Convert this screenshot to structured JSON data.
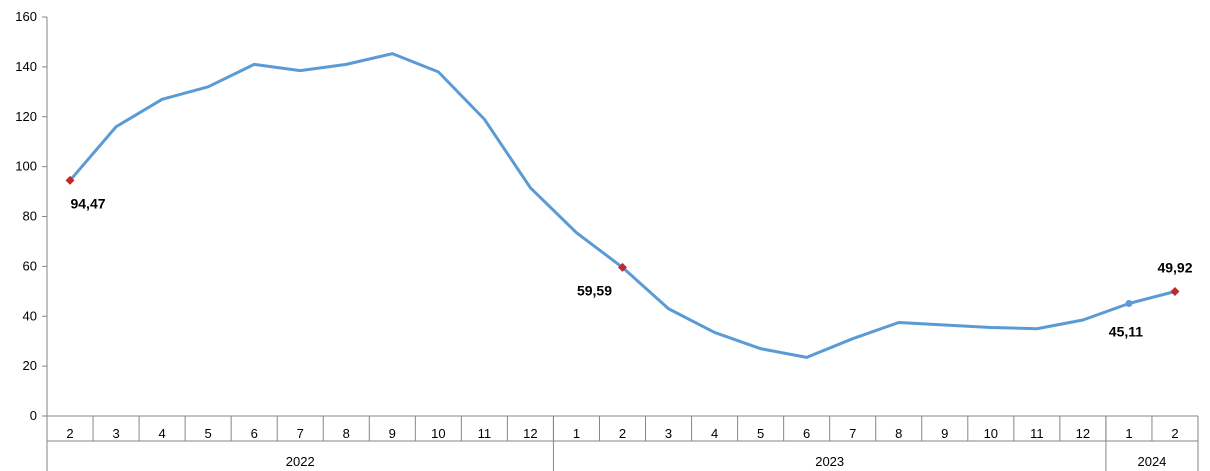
{
  "chart_data": {
    "type": "line",
    "ylim": [
      0,
      160
    ],
    "yticks": [
      0,
      20,
      40,
      60,
      80,
      100,
      120,
      140,
      160
    ],
    "grid": false,
    "categories": [
      "2",
      "3",
      "4",
      "5",
      "6",
      "7",
      "8",
      "9",
      "10",
      "11",
      "12",
      "1",
      "2",
      "3",
      "4",
      "5",
      "6",
      "7",
      "8",
      "9",
      "10",
      "11",
      "12",
      "1",
      "2"
    ],
    "groups": [
      {
        "label": "2022",
        "count": 11
      },
      {
        "label": "2023",
        "count": 12
      },
      {
        "label": "2024",
        "count": 2
      }
    ],
    "series": [
      {
        "color": "#5b9bd5",
        "values": [
          94.47,
          116.0,
          127.0,
          132.0,
          141.0,
          138.5,
          141.0,
          145.3,
          138.0,
          119.0,
          91.5,
          73.5,
          59.59,
          43.0,
          33.5,
          27.0,
          23.5,
          31.0,
          37.5,
          36.5,
          35.5,
          35.0,
          38.5,
          45.11,
          49.92
        ]
      }
    ],
    "highlight_color": "#c0292b",
    "highlights": [
      0,
      12,
      24
    ],
    "labeled_points": [
      {
        "index": 0,
        "text": "94,47"
      },
      {
        "index": 12,
        "text": "59,59"
      },
      {
        "index": 23,
        "text": "45,11"
      },
      {
        "index": 24,
        "text": "49,92"
      }
    ]
  }
}
